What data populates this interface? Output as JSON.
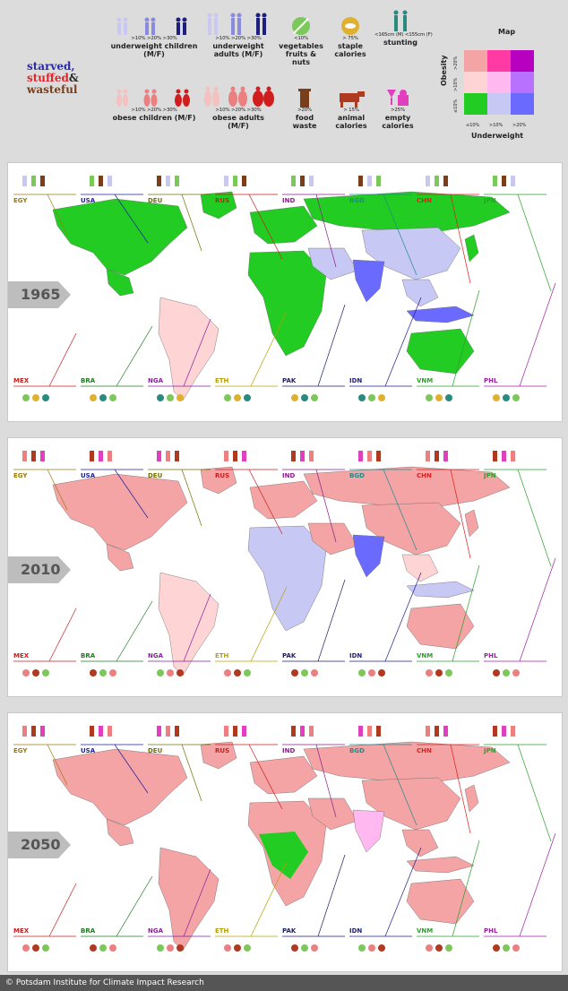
{
  "brand": {
    "line1": "starved,",
    "line2": "stuffed",
    "amp": "&",
    "line3": "wasteful"
  },
  "legend": {
    "underweight_children": {
      "thresholds": ">10%  >20%  >30%",
      "label": "underweight children (M/F)"
    },
    "underweight_adults": {
      "thresholds": ">10%  >20%  >30%",
      "label": "underweight adults (M/F)"
    },
    "vegetables": {
      "thresholds": "<10%",
      "label": "vegetables fruits & nuts"
    },
    "staple": {
      "thresholds": "> 75%",
      "label": "staple calories"
    },
    "stunting": {
      "thresholds": "<165cm (M) <155cm (F)",
      "label": "stunting"
    },
    "obese_children": {
      "thresholds": ">10%  >20%  >30%",
      "label": "obese children (M/F)"
    },
    "obese_adults": {
      "thresholds": ">10%  >20%  >30%",
      "label": "obese adults (M/F)"
    },
    "food_waste": {
      "thresholds": ">20%",
      "label": "food waste"
    },
    "animal": {
      "thresholds": "> 15%",
      "label": "animal calories"
    },
    "empty": {
      "thresholds": ">25%",
      "label": "empty calories"
    }
  },
  "map_key": {
    "title": "Map",
    "y_axis": "Obesity",
    "x_axis": "Underweight",
    "ticks": [
      "≤10%",
      ">10%",
      ">20%"
    ],
    "grid": [
      [
        "#f4a4a4",
        "#ff3aa4",
        "#b800c0"
      ],
      [
        "#ffd4d4",
        "#ffb8f0",
        "#b870ff"
      ],
      [
        "#22cc22",
        "#c8c8f4",
        "#6a6aff"
      ]
    ]
  },
  "countries_top": [
    "EGY",
    "USA",
    "DEU",
    "RUS",
    "IND",
    "BGD",
    "CHN",
    "JPN"
  ],
  "countries_bottom": [
    "MEX",
    "BRA",
    "NGA",
    "ETH",
    "PAK",
    "IDN",
    "VNM",
    "PHL"
  ],
  "country_colors": {
    "EGY": "#9a7a10",
    "USA": "#1e1ea0",
    "DEU": "#707000",
    "RUS": "#c81e1e",
    "IND": "#8a1e8a",
    "BGD": "#1e8a8a",
    "CHN": "#e01e1e",
    "JPN": "#2aa02a",
    "MEX": "#c81e1e",
    "BRA": "#207a20",
    "NGA": "#8a1ea0",
    "ETH": "#b8a000",
    "PAK": "#1e1e60",
    "IDN": "#1e1e8a",
    "VNM": "#2aa02a",
    "PHL": "#a01ea0"
  },
  "panels": [
    {
      "year": "1965"
    },
    {
      "year": "2010"
    },
    {
      "year": "2050"
    }
  ],
  "footer": "© Potsdam Institute for Climate Impact Research"
}
